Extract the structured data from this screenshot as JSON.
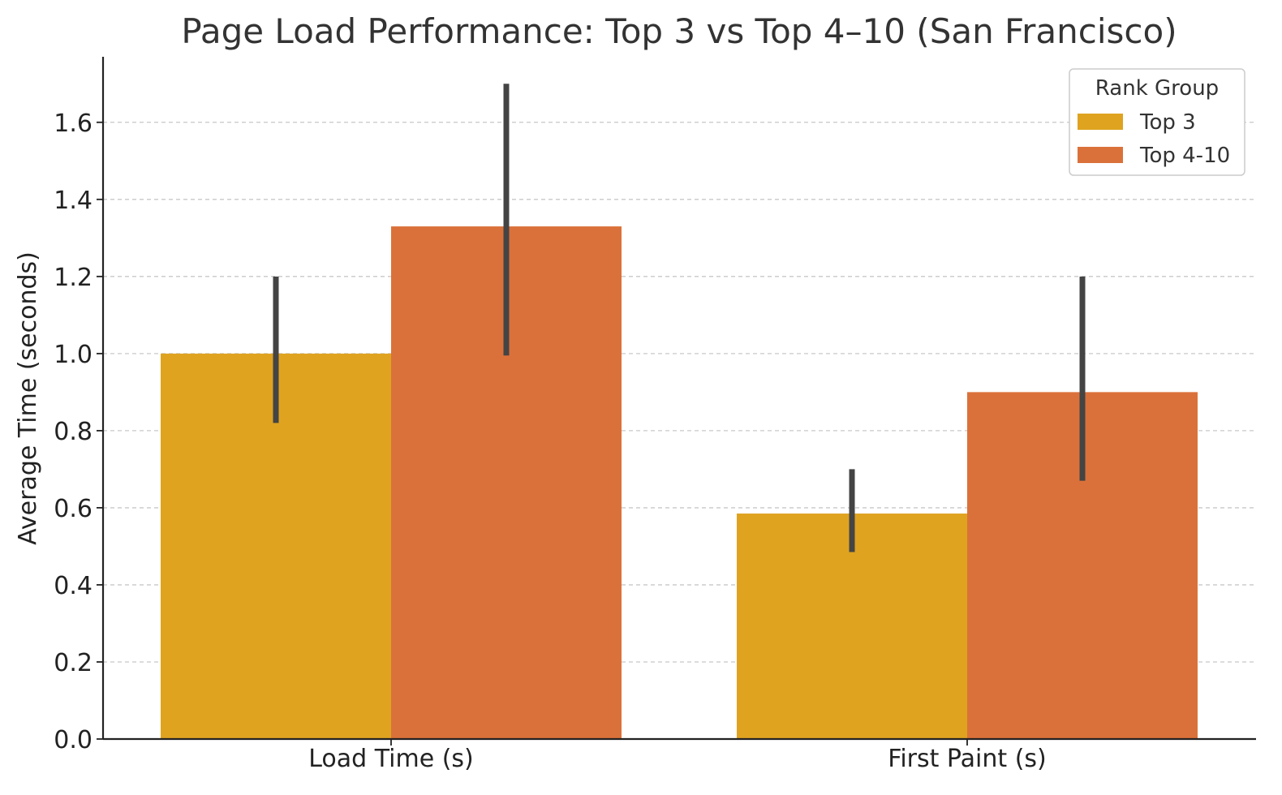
{
  "chart_data": {
    "type": "bar",
    "title": "Page Load Performance: Top 3 vs Top 4–10 (San Francisco)",
    "xlabel": "",
    "ylabel": "Average Time (seconds)",
    "categories": [
      "Load Time (s)",
      "First Paint (s)"
    ],
    "series": [
      {
        "name": "Top 3",
        "color": "#DFA320",
        "values": [
          1.0,
          0.585
        ],
        "error_low": [
          0.82,
          0.485
        ],
        "error_high": [
          1.2,
          0.7
        ]
      },
      {
        "name": "Top 4-10",
        "color": "#DB713A",
        "values": [
          1.33,
          0.9
        ],
        "error_low": [
          0.995,
          0.67
        ],
        "error_high": [
          1.7,
          1.2
        ]
      }
    ],
    "ylim": [
      0,
      1.77
    ],
    "yticks": [
      "0.0",
      "0.2",
      "0.4",
      "0.6",
      "0.8",
      "1.0",
      "1.2",
      "1.4",
      "1.6"
    ],
    "grid": true,
    "legend": {
      "title": "Rank Group",
      "position": "top-right"
    },
    "errorbar_color": "#444444"
  }
}
